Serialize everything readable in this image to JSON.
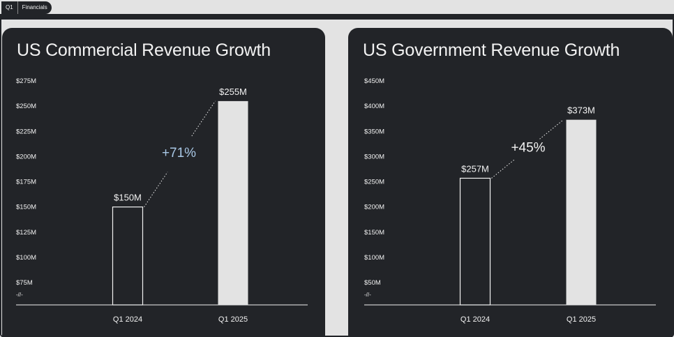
{
  "breadcrumb": {
    "quarter": "Q1",
    "section": "Financials"
  },
  "chart_data": [
    {
      "type": "bar",
      "title": "US Commercial Revenue Growth",
      "categories": [
        "Q1 2024",
        "Q1 2025"
      ],
      "values": [
        150,
        255
      ],
      "value_labels": [
        "$150M",
        "$255M"
      ],
      "bar_styles": [
        "outline",
        "filled"
      ],
      "growth_label": "+71%",
      "growth_color": "#a9c8e6",
      "ylim": [
        75,
        275
      ],
      "yticks": [
        75,
        100,
        125,
        150,
        175,
        200,
        225,
        250,
        275
      ],
      "ytick_labels": [
        "$75M",
        "$100M",
        "$125M",
        "$150M",
        "$175M",
        "$200M",
        "$225M",
        "$250M",
        "$275M"
      ],
      "axis_break_label": "-//-",
      "grid": false
    },
    {
      "type": "bar",
      "title": "US Government Revenue Growth",
      "categories": [
        "Q1 2024",
        "Q1 2025"
      ],
      "values": [
        257,
        373
      ],
      "value_labels": [
        "$257M",
        "$373M"
      ],
      "bar_styles": [
        "outline",
        "filled"
      ],
      "growth_label": "+45%",
      "growth_color": "#f2f2f2",
      "ylim": [
        50,
        450
      ],
      "yticks": [
        50,
        100,
        150,
        200,
        250,
        300,
        350,
        400,
        450
      ],
      "ytick_labels": [
        "$50M",
        "$100M",
        "$150M",
        "$200M",
        "$250M",
        "$300M",
        "$350M",
        "$400M",
        "$450M"
      ],
      "axis_break_label": "-//-",
      "grid": false
    }
  ],
  "colors": {
    "panel_bg": "#222428",
    "page_bg": "#e3e3e3",
    "text": "#f2f2f2",
    "bar_fill": "#e3e3e3"
  }
}
